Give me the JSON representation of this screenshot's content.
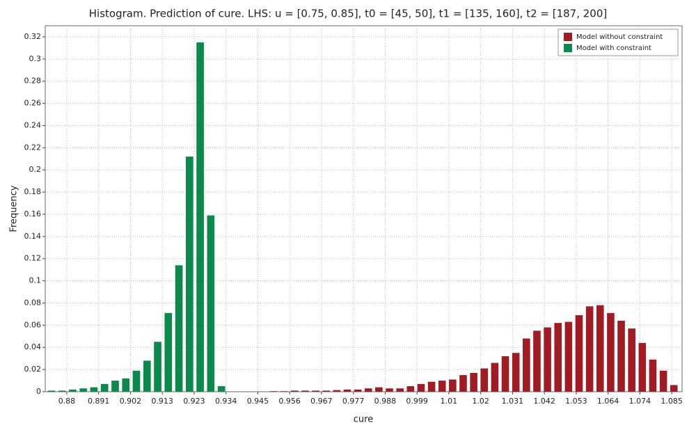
{
  "chart_data": {
    "type": "histogram",
    "title": "Histogram. Prediction of cure. LHS: u = [0.75, 0.85], t0 = [45, 50], t1 = [135, 160], t2 = [187, 200]",
    "x_label": "cure",
    "y_label": "Frequency",
    "xlim": [
      0.8727,
      1.0885
    ],
    "ylim": [
      0,
      0.33
    ],
    "xticks": [
      {
        "value": 0.88,
        "label": "0.88"
      },
      {
        "value": 0.890789,
        "label": "0.891"
      },
      {
        "value": 0.901579,
        "label": "0.902"
      },
      {
        "value": 0.912368,
        "label": "0.913"
      },
      {
        "value": 0.923158,
        "label": "0.923"
      },
      {
        "value": 0.933947,
        "label": "0.934"
      },
      {
        "value": 0.944737,
        "label": "0.945"
      },
      {
        "value": 0.955526,
        "label": "0.956"
      },
      {
        "value": 0.966316,
        "label": "0.967"
      },
      {
        "value": 0.977105,
        "label": "0.977"
      },
      {
        "value": 0.987895,
        "label": "0.988"
      },
      {
        "value": 0.998684,
        "label": "0.999"
      },
      {
        "value": 1.009474,
        "label": "1.01"
      },
      {
        "value": 1.020263,
        "label": "1.02"
      },
      {
        "value": 1.031053,
        "label": "1.031"
      },
      {
        "value": 1.041842,
        "label": "1.042"
      },
      {
        "value": 1.052632,
        "label": "1.053"
      },
      {
        "value": 1.063421,
        "label": "1.064"
      },
      {
        "value": 1.074211,
        "label": "1.074"
      },
      {
        "value": 1.085,
        "label": "1.085"
      }
    ],
    "yticks": [
      0,
      0.02,
      0.04,
      0.06,
      0.08,
      0.1,
      0.12,
      0.14,
      0.16,
      0.18,
      0.2,
      0.22,
      0.24,
      0.26,
      0.28,
      0.3,
      0.32
    ],
    "grid": true,
    "legend": "top-right",
    "series": [
      {
        "name": "Model without constraint",
        "color": "#a01c22",
        "bins": [
          0.934,
          0.93757,
          0.94114,
          0.94471,
          0.94828,
          0.95185,
          0.95542,
          0.95899,
          0.96256,
          0.96613,
          0.9697,
          0.97327,
          0.97684,
          0.98041,
          0.98398,
          0.98755,
          0.99112,
          0.99469,
          0.99826,
          1.00183,
          1.0054,
          1.00897,
          1.01254,
          1.01611,
          1.01968,
          1.02325,
          1.02682,
          1.03039,
          1.03396,
          1.03753,
          1.0411,
          1.04467,
          1.04824,
          1.05181,
          1.05538,
          1.05895,
          1.06252,
          1.06609,
          1.06966,
          1.07323,
          1.0768,
          1.08037,
          1.08394,
          1.08751
        ],
        "values": [
          0,
          0,
          0,
          0,
          0.0005,
          0.0005,
          0.001,
          0.001,
          0.001,
          0.001,
          0.0015,
          0.002,
          0.002,
          0.003,
          0.004,
          0.003,
          0.003,
          0.005,
          0.007,
          0.009,
          0.01,
          0.011,
          0.015,
          0.017,
          0.021,
          0.026,
          0.032,
          0.035,
          0.048,
          0.055,
          0.058,
          0.062,
          0.063,
          0.069,
          0.077,
          0.078,
          0.071,
          0.064,
          0.057,
          0.044,
          0.029,
          0.019,
          0.006
        ]
      },
      {
        "name": "Model with constraint",
        "color": "#0b8a4b",
        "bins": [
          0.873,
          0.8766,
          0.8802,
          0.8838,
          0.8874,
          0.891,
          0.8946,
          0.8982,
          0.9018,
          0.9054,
          0.909,
          0.9126,
          0.9162,
          0.9198,
          0.9234,
          0.927,
          0.9306,
          0.9342
        ],
        "values": [
          0.001,
          0.001,
          0.002,
          0.003,
          0.004,
          0.007,
          0.01,
          0.012,
          0.019,
          0.028,
          0.045,
          0.071,
          0.114,
          0.212,
          0.315,
          0.159,
          0.005
        ]
      }
    ]
  }
}
